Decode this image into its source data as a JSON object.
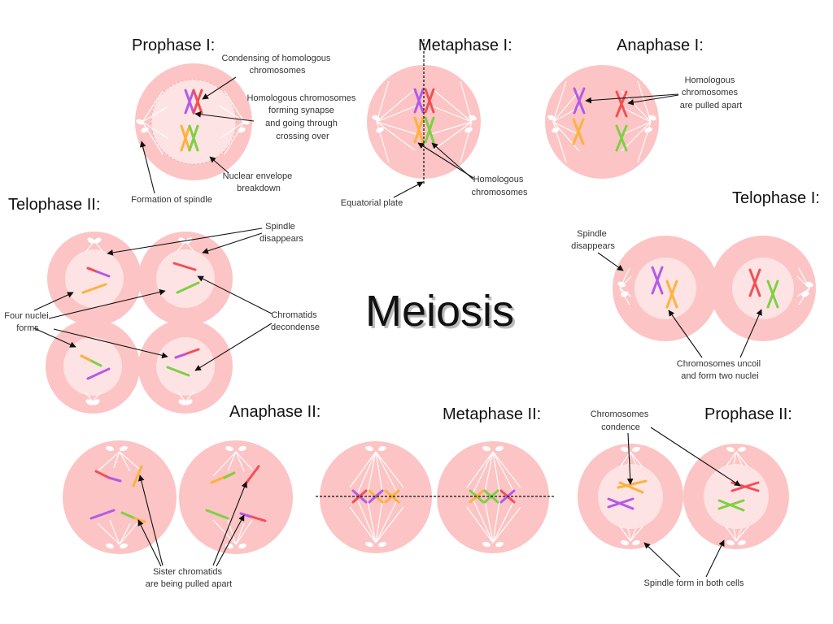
{
  "main_title": "Meiosis",
  "stages": {
    "prophase1": "Prophase I:",
    "metaphase1": "Metaphase I:",
    "anaphase1": "Anaphase I:",
    "telophase1": "Telophase I:",
    "prophase2": "Prophase II:",
    "metaphase2": "Metaphase II:",
    "anaphase2": "Anaphase II:",
    "telophase2": "Telophase II:"
  },
  "notes": {
    "condensing": [
      "Condensing of homologous",
      "chromosomes"
    ],
    "synapse": [
      "Homologous chromosomes",
      "forming synapse",
      "and going through",
      "crossing over"
    ],
    "envelope": [
      "Nuclear envelope",
      "breakdown"
    ],
    "spindle_formation": [
      "Formation of spindle"
    ],
    "equatorial": [
      "Equatorial plate"
    ],
    "homologous_m1": [
      "Homologous",
      "chromosomes"
    ],
    "pulled_apart_a1": [
      "Homologous",
      "chromosomes",
      "are pulled apart"
    ],
    "spindle_disappears_t1": [
      "Spindle",
      "disappears"
    ],
    "uncoil": [
      "Chromosomes uncoil",
      "and form two nuclei"
    ],
    "spindle_disappears_t2": [
      "Spindle",
      "disappears"
    ],
    "four_nuclei": [
      "Four nuclei",
      "forms"
    ],
    "decondense": [
      "Chromatids",
      "decondense"
    ],
    "condence_p2": [
      "Chromosomes",
      "condence"
    ],
    "spindle_both": [
      "Spindle form in both cells"
    ],
    "sister": [
      "Sister chromatids",
      "are being pulled apart"
    ]
  },
  "colors": {
    "cell": "#fcc4c4",
    "nucleus": "#fde3e3",
    "purple": "#b45ae8",
    "red": "#f24f55",
    "orange": "#fdb23c",
    "green": "#7ed044"
  }
}
